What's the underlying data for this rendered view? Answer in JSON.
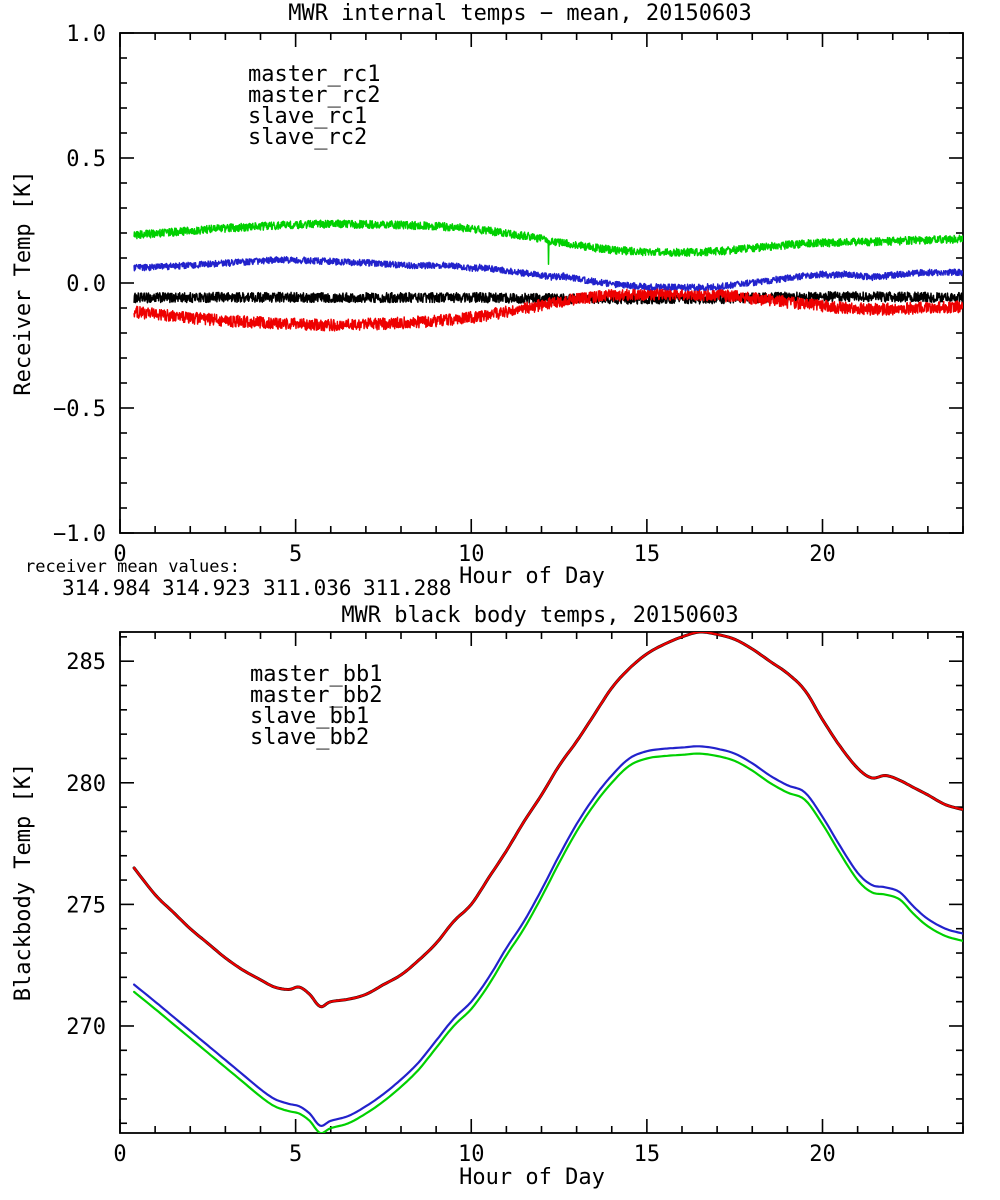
{
  "page": {
    "background": "#ffffff",
    "description": "MWR temperature daily plots"
  },
  "chart_data": [
    {
      "type": "line",
      "title": "MWR internal temps − mean, 20150603",
      "x_axis": {
        "label": "Hour of Day",
        "range": [
          0,
          24
        ],
        "major_ticks": [
          0,
          5,
          10,
          15,
          20
        ],
        "major_labels": [
          "0",
          "5",
          "10",
          "15",
          "20"
        ],
        "minor_interval": 1
      },
      "y_axis": {
        "label": "Receiver Temp [K]",
        "range": [
          -1.0,
          1.0
        ],
        "major_ticks": [
          -1.0,
          -0.5,
          0.0,
          0.5,
          1.0
        ],
        "major_labels": [
          "−1.0",
          "−0.5",
          "0.0",
          "0.5",
          "1.0"
        ],
        "minor_interval": 0.1
      },
      "grid": false,
      "legend_position": "upper-left-inside",
      "annotation": {
        "label": "receiver mean values:",
        "values": [
          {
            "text": "314.984",
            "color": "#000000"
          },
          {
            "text": "314.923",
            "color": "#ee0000"
          },
          {
            "text": "311.036",
            "color": "#2222cc"
          },
          {
            "text": "311.288",
            "color": "#00d000"
          }
        ]
      },
      "series": [
        {
          "name": "master_rc1",
          "color": "#000000",
          "x": [
            0.4,
            2,
            4,
            6,
            8,
            10,
            11,
            12,
            13,
            14,
            15,
            16,
            17,
            18,
            19,
            20,
            21,
            22,
            23,
            24
          ],
          "y": [
            -0.06,
            -0.058,
            -0.057,
            -0.058,
            -0.058,
            -0.058,
            -0.06,
            -0.062,
            -0.063,
            -0.065,
            -0.065,
            -0.065,
            -0.063,
            -0.06,
            -0.057,
            -0.055,
            -0.055,
            -0.056,
            -0.057,
            -0.058
          ]
        },
        {
          "name": "master_rc2",
          "color": "#ee0000",
          "x": [
            0.4,
            1,
            2,
            3,
            4,
            5,
            5.5,
            6,
            7,
            8,
            9,
            10,
            10.5,
            11,
            11.5,
            12,
            12.5,
            13,
            13.5,
            14,
            15,
            16,
            16.5,
            17,
            17.5,
            18,
            18.5,
            19,
            19.5,
            20,
            20.5,
            21,
            21.5,
            22,
            22.5,
            23,
            23.5,
            24
          ],
          "y": [
            -0.115,
            -0.125,
            -0.14,
            -0.151,
            -0.159,
            -0.165,
            -0.168,
            -0.168,
            -0.165,
            -0.16,
            -0.152,
            -0.138,
            -0.128,
            -0.115,
            -0.102,
            -0.088,
            -0.075,
            -0.063,
            -0.055,
            -0.049,
            -0.045,
            -0.045,
            -0.046,
            -0.049,
            -0.054,
            -0.061,
            -0.068,
            -0.077,
            -0.085,
            -0.092,
            -0.098,
            -0.103,
            -0.105,
            -0.104,
            -0.101,
            -0.099,
            -0.097,
            -0.095
          ]
        },
        {
          "name": "slave_rc1",
          "color": "#2222cc",
          "x": [
            0.4,
            1,
            2,
            3,
            4,
            4.5,
            5,
            6,
            7,
            8,
            8.5,
            9,
            9.3,
            9.7,
            10,
            10.3,
            10.7,
            11,
            11.5,
            12,
            12.3,
            12.6,
            13,
            13.5,
            14,
            14.5,
            15,
            16,
            16.5,
            17,
            17.5,
            18,
            18.5,
            19,
            19.5,
            20,
            20.3,
            20.7,
            21,
            21.4,
            21.8,
            22.2,
            22.6,
            23,
            23.5,
            24
          ],
          "y": [
            0.06,
            0.064,
            0.071,
            0.079,
            0.088,
            0.093,
            0.092,
            0.086,
            0.081,
            0.072,
            0.068,
            0.071,
            0.073,
            0.064,
            0.058,
            0.063,
            0.054,
            0.048,
            0.04,
            0.03,
            0.024,
            0.028,
            0.016,
            0.006,
            -0.004,
            -0.011,
            -0.015,
            -0.018,
            -0.018,
            -0.014,
            -0.007,
            0.001,
            0.01,
            0.02,
            0.029,
            0.035,
            0.031,
            0.036,
            0.029,
            0.023,
            0.028,
            0.035,
            0.039,
            0.042,
            0.043,
            0.041
          ]
        },
        {
          "name": "slave_rc2",
          "color": "#00d000",
          "x": [
            0.4,
            1,
            2,
            3,
            4,
            5,
            5.5,
            6,
            6.5,
            7,
            8,
            9,
            9.5,
            10,
            10.5,
            11,
            11.5,
            12,
            12.19,
            12.2,
            12.21,
            12.5,
            13,
            13.5,
            14,
            14.5,
            15,
            15.5,
            16,
            16.5,
            17,
            17.5,
            18,
            18.5,
            19,
            19.5,
            20,
            21,
            22,
            22.5,
            23,
            23.5,
            24
          ],
          "y": [
            0.192,
            0.198,
            0.209,
            0.219,
            0.227,
            0.233,
            0.235,
            0.236,
            0.235,
            0.234,
            0.232,
            0.227,
            0.223,
            0.217,
            0.209,
            0.199,
            0.189,
            0.177,
            0.169,
            0.088,
            0.168,
            0.163,
            0.151,
            0.141,
            0.133,
            0.128,
            0.125,
            0.123,
            0.122,
            0.123,
            0.127,
            0.132,
            0.139,
            0.146,
            0.152,
            0.157,
            0.16,
            0.163,
            0.167,
            0.17,
            0.172,
            0.174,
            0.175
          ]
        }
      ]
    },
    {
      "type": "line",
      "title": "MWR black body temps, 20150603",
      "x_axis": {
        "label": "Hour of Day",
        "range": [
          0,
          24
        ],
        "major_ticks": [
          0,
          5,
          10,
          15,
          20
        ],
        "major_labels": [
          "0",
          "5",
          "10",
          "15",
          "20"
        ],
        "minor_interval": 1
      },
      "y_axis": {
        "label": "Blackbody Temp [K]",
        "range": [
          265.6,
          286.2
        ],
        "major_ticks": [
          270,
          275,
          280,
          285
        ],
        "major_labels": [
          "270",
          "275",
          "280",
          "285"
        ],
        "minor_interval": 1
      },
      "grid": false,
      "legend_position": "upper-left-inside",
      "series": [
        {
          "name": "master_bb1",
          "color": "#000000",
          "x": [
            0.4,
            1,
            1.5,
            2,
            2.5,
            3,
            3.5,
            4,
            4.4,
            4.8,
            5.1,
            5.4,
            5.7,
            6,
            6.5,
            7,
            7.5,
            8,
            8.5,
            9,
            9.5,
            10,
            10.5,
            11,
            11.5,
            12,
            12.5,
            13,
            13.5,
            14,
            14.5,
            15,
            15.5,
            16,
            16.5,
            17,
            17.5,
            18,
            18.5,
            19,
            19.5,
            20,
            20.5,
            21,
            21.4,
            21.8,
            22.2,
            22.6,
            23,
            23.5,
            24
          ],
          "y": [
            276.5,
            275.4,
            274.7,
            274.0,
            273.4,
            272.8,
            272.3,
            271.9,
            271.6,
            271.5,
            271.6,
            271.3,
            270.8,
            271.0,
            271.1,
            271.3,
            271.7,
            272.1,
            272.7,
            273.4,
            274.3,
            275.0,
            276.1,
            277.2,
            278.4,
            279.5,
            280.7,
            281.7,
            282.8,
            283.9,
            284.7,
            285.3,
            285.7,
            286.0,
            286.2,
            286.1,
            285.9,
            285.5,
            285.0,
            284.5,
            283.8,
            282.6,
            281.5,
            280.6,
            280.2,
            280.3,
            280.1,
            279.8,
            279.5,
            279.1,
            278.9
          ]
        },
        {
          "name": "master_bb2",
          "color": "#ee0000",
          "x": [
            0.4,
            1,
            1.5,
            2,
            2.5,
            3,
            3.5,
            4,
            4.4,
            4.8,
            5.1,
            5.4,
            5.7,
            6,
            6.5,
            7,
            7.5,
            8,
            8.5,
            9,
            9.5,
            10,
            10.5,
            11,
            11.5,
            12,
            12.5,
            13,
            13.5,
            14,
            14.5,
            15,
            15.5,
            16,
            16.5,
            17,
            17.5,
            18,
            18.5,
            19,
            19.5,
            20,
            20.5,
            21,
            21.4,
            21.8,
            22.2,
            22.6,
            23,
            23.5,
            24
          ],
          "y": [
            276.5,
            275.4,
            274.7,
            274.0,
            273.4,
            272.8,
            272.3,
            271.9,
            271.6,
            271.5,
            271.6,
            271.3,
            270.8,
            271.0,
            271.1,
            271.3,
            271.7,
            272.1,
            272.7,
            273.4,
            274.3,
            275.0,
            276.1,
            277.2,
            278.4,
            279.5,
            280.7,
            281.7,
            282.8,
            283.9,
            284.7,
            285.3,
            285.7,
            286.0,
            286.2,
            286.1,
            285.9,
            285.5,
            285.0,
            284.5,
            283.8,
            282.6,
            281.5,
            280.6,
            280.2,
            280.3,
            280.1,
            279.8,
            279.5,
            279.1,
            278.9
          ]
        },
        {
          "name": "slave_bb1",
          "color": "#2222cc",
          "x": [
            0.4,
            1,
            1.5,
            2,
            2.5,
            3,
            3.5,
            4,
            4.4,
            4.8,
            5.1,
            5.4,
            5.7,
            6,
            6.5,
            7,
            7.5,
            8,
            8.5,
            9,
            9.5,
            10,
            10.5,
            11,
            11.5,
            12,
            12.5,
            13,
            13.5,
            14,
            14.5,
            15,
            15.5,
            16,
            16.5,
            17,
            17.5,
            18,
            18.5,
            19,
            19.5,
            20,
            20.5,
            21,
            21.4,
            21.8,
            22.2,
            22.6,
            23,
            23.5,
            24
          ],
          "y": [
            271.7,
            271.0,
            270.4,
            269.8,
            269.2,
            268.6,
            268.0,
            267.4,
            267.0,
            266.8,
            266.7,
            266.4,
            265.9,
            266.1,
            266.3,
            266.7,
            267.2,
            267.8,
            268.5,
            269.4,
            270.3,
            271.0,
            272.0,
            273.2,
            274.3,
            275.6,
            277.0,
            278.3,
            279.4,
            280.3,
            281.0,
            281.3,
            281.4,
            281.45,
            281.5,
            281.4,
            281.2,
            280.8,
            280.3,
            279.9,
            279.6,
            278.6,
            277.4,
            276.3,
            275.8,
            275.7,
            275.5,
            274.9,
            274.4,
            274.0,
            273.8
          ]
        },
        {
          "name": "slave_bb2",
          "color": "#00d000",
          "x": [
            0.4,
            1,
            1.5,
            2,
            2.5,
            3,
            3.5,
            4,
            4.4,
            4.8,
            5.1,
            5.4,
            5.7,
            6,
            6.5,
            7,
            7.5,
            8,
            8.5,
            9,
            9.5,
            10,
            10.5,
            11,
            11.5,
            12,
            12.5,
            13,
            13.5,
            14,
            14.5,
            15,
            15.5,
            16,
            16.5,
            17,
            17.5,
            18,
            18.5,
            19,
            19.5,
            20,
            20.5,
            21,
            21.4,
            21.8,
            22.2,
            22.6,
            23,
            23.5,
            24
          ],
          "y": [
            271.4,
            270.7,
            270.1,
            269.5,
            268.9,
            268.3,
            267.7,
            267.1,
            266.7,
            266.5,
            266.4,
            266.1,
            265.6,
            265.8,
            266.0,
            266.4,
            266.9,
            267.5,
            268.2,
            269.1,
            270.0,
            270.7,
            271.7,
            272.9,
            274.0,
            275.3,
            276.7,
            278.0,
            279.1,
            280.0,
            280.7,
            281.0,
            281.1,
            281.15,
            281.2,
            281.1,
            280.9,
            280.5,
            280.0,
            279.6,
            279.3,
            278.3,
            277.1,
            276.0,
            275.5,
            275.4,
            275.2,
            274.6,
            274.1,
            273.7,
            273.5
          ]
        }
      ]
    }
  ]
}
